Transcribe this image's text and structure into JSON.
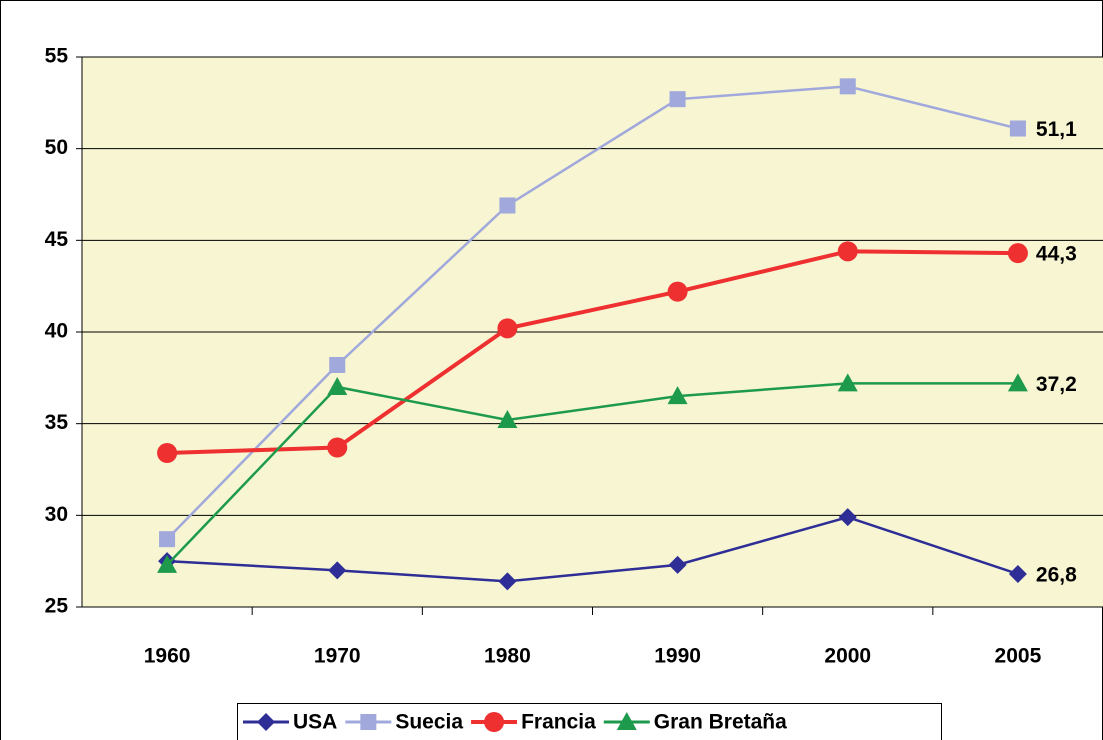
{
  "chart_data": {
    "type": "line",
    "categories": [
      "1960",
      "1970",
      "1980",
      "1990",
      "2000",
      "2005"
    ],
    "series": [
      {
        "name": "USA",
        "color": "#2e2e96",
        "marker": "diamond",
        "values": [
          27.5,
          27.0,
          26.4,
          27.3,
          29.9,
          26.8
        ],
        "value_labels": [
          null,
          null,
          null,
          null,
          null,
          "26,8"
        ]
      },
      {
        "name": "Suecia",
        "color": "#a0a8dc",
        "marker": "square",
        "values": [
          28.7,
          38.2,
          46.9,
          52.7,
          53.4,
          51.1
        ],
        "value_labels": [
          null,
          null,
          null,
          null,
          null,
          "51,1"
        ]
      },
      {
        "name": "Francia",
        "color": "#ee3030",
        "marker": "circle",
        "values": [
          33.4,
          33.7,
          40.2,
          42.2,
          44.4,
          44.3
        ],
        "value_labels": [
          null,
          null,
          null,
          null,
          null,
          "44,3"
        ]
      },
      {
        "name": "Gran Bretaña",
        "color": "#1e9a4c",
        "marker": "triangle",
        "values": [
          27.3,
          37.0,
          35.2,
          36.5,
          37.2,
          37.2
        ],
        "value_labels": [
          null,
          null,
          null,
          null,
          null,
          "37,2"
        ]
      }
    ],
    "ylim": [
      25,
      55
    ],
    "yticks": [
      25,
      30,
      35,
      40,
      45,
      50,
      55
    ],
    "grid": true,
    "legend": "bottom"
  }
}
